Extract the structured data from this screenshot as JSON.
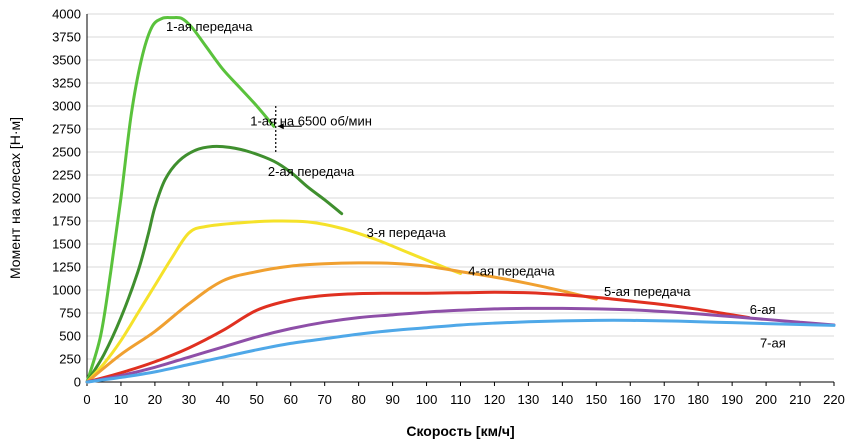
{
  "chart_data": {
    "type": "line",
    "xlabel": "Скорость [км/ч]",
    "ylabel": "Момент на колесах [Н·м]",
    "xlim": [
      0,
      220
    ],
    "ylim": [
      0,
      4000
    ],
    "x_ticks": [
      "0",
      "10",
      "20",
      "30",
      "40",
      "50",
      "60",
      "70",
      "80",
      "90",
      "100",
      "110",
      "120",
      "130",
      "140",
      "150",
      "160",
      "170",
      "180",
      "190",
      "200",
      "210",
      "220"
    ],
    "y_ticks": [
      "0",
      "250",
      "500",
      "750",
      "1000",
      "1250",
      "1500",
      "1750",
      "2000",
      "2250",
      "2500",
      "2750",
      "3000",
      "3250",
      "3500",
      "3750",
      "4000"
    ],
    "grid": "horizontal",
    "series": [
      {
        "name": "1-ая передача",
        "color": "#5ac23c",
        "points": [
          [
            0,
            0
          ],
          [
            4,
            500
          ],
          [
            7,
            1200
          ],
          [
            10,
            2000
          ],
          [
            13,
            2900
          ],
          [
            16,
            3500
          ],
          [
            19,
            3850
          ],
          [
            22,
            3950
          ],
          [
            25,
            3960
          ],
          [
            28,
            3950
          ],
          [
            31,
            3850
          ],
          [
            35,
            3650
          ],
          [
            40,
            3400
          ],
          [
            45,
            3200
          ],
          [
            50,
            3000
          ],
          [
            55,
            2780
          ]
        ]
      },
      {
        "name": "2-ая передача",
        "color": "#3f8f2e",
        "points": [
          [
            0,
            0
          ],
          [
            5,
            300
          ],
          [
            10,
            700
          ],
          [
            15,
            1200
          ],
          [
            18,
            1600
          ],
          [
            20,
            1900
          ],
          [
            23,
            2200
          ],
          [
            27,
            2400
          ],
          [
            32,
            2520
          ],
          [
            37,
            2560
          ],
          [
            42,
            2550
          ],
          [
            48,
            2500
          ],
          [
            55,
            2400
          ],
          [
            60,
            2280
          ],
          [
            65,
            2120
          ],
          [
            70,
            1980
          ],
          [
            75,
            1830
          ]
        ]
      },
      {
        "name": "3-я передача",
        "color": "#f5e22a",
        "points": [
          [
            0,
            0
          ],
          [
            5,
            200
          ],
          [
            10,
            450
          ],
          [
            15,
            750
          ],
          [
            20,
            1050
          ],
          [
            25,
            1350
          ],
          [
            30,
            1620
          ],
          [
            35,
            1690
          ],
          [
            45,
            1730
          ],
          [
            55,
            1750
          ],
          [
            65,
            1740
          ],
          [
            75,
            1670
          ],
          [
            85,
            1550
          ],
          [
            95,
            1400
          ],
          [
            105,
            1250
          ],
          [
            110,
            1180
          ]
        ]
      },
      {
        "name": "4-ая передача",
        "color": "#f0a030",
        "points": [
          [
            0,
            0
          ],
          [
            10,
            300
          ],
          [
            20,
            550
          ],
          [
            30,
            850
          ],
          [
            40,
            1100
          ],
          [
            50,
            1200
          ],
          [
            60,
            1260
          ],
          [
            70,
            1285
          ],
          [
            80,
            1295
          ],
          [
            90,
            1290
          ],
          [
            100,
            1260
          ],
          [
            110,
            1200
          ],
          [
            120,
            1140
          ],
          [
            130,
            1070
          ],
          [
            140,
            990
          ],
          [
            150,
            900
          ]
        ]
      },
      {
        "name": "5-ая передача",
        "color": "#e03020",
        "points": [
          [
            0,
            0
          ],
          [
            10,
            100
          ],
          [
            20,
            220
          ],
          [
            30,
            370
          ],
          [
            40,
            560
          ],
          [
            50,
            780
          ],
          [
            60,
            890
          ],
          [
            70,
            940
          ],
          [
            80,
            960
          ],
          [
            90,
            965
          ],
          [
            100,
            965
          ],
          [
            110,
            970
          ],
          [
            120,
            975
          ],
          [
            130,
            970
          ],
          [
            140,
            950
          ],
          [
            150,
            920
          ],
          [
            160,
            880
          ],
          [
            170,
            840
          ],
          [
            180,
            790
          ],
          [
            190,
            730
          ],
          [
            195,
            700
          ]
        ]
      },
      {
        "name": "6-ая",
        "color": "#8e4fa8",
        "points": [
          [
            0,
            0
          ],
          [
            10,
            70
          ],
          [
            20,
            160
          ],
          [
            30,
            270
          ],
          [
            40,
            380
          ],
          [
            50,
            490
          ],
          [
            60,
            580
          ],
          [
            70,
            650
          ],
          [
            80,
            700
          ],
          [
            90,
            730
          ],
          [
            100,
            760
          ],
          [
            110,
            780
          ],
          [
            120,
            795
          ],
          [
            130,
            800
          ],
          [
            140,
            800
          ],
          [
            150,
            795
          ],
          [
            160,
            785
          ],
          [
            170,
            765
          ],
          [
            180,
            740
          ],
          [
            190,
            710
          ],
          [
            200,
            680
          ],
          [
            210,
            650
          ],
          [
            220,
            620
          ]
        ]
      },
      {
        "name": "7-ая",
        "color": "#4fa8e8",
        "points": [
          [
            0,
            0
          ],
          [
            10,
            50
          ],
          [
            20,
            110
          ],
          [
            30,
            190
          ],
          [
            40,
            270
          ],
          [
            50,
            350
          ],
          [
            60,
            420
          ],
          [
            70,
            470
          ],
          [
            80,
            520
          ],
          [
            90,
            560
          ],
          [
            100,
            590
          ],
          [
            110,
            620
          ],
          [
            120,
            640
          ],
          [
            130,
            655
          ],
          [
            140,
            665
          ],
          [
            150,
            670
          ],
          [
            160,
            670
          ],
          [
            170,
            665
          ],
          [
            180,
            655
          ],
          [
            190,
            645
          ],
          [
            200,
            635
          ],
          [
            210,
            625
          ],
          [
            220,
            615
          ]
        ]
      }
    ],
    "labels": [
      {
        "text": "1-ая передача",
        "x": 36,
        "y": 3860
      },
      {
        "text": "1-ая на 6500 об/мин",
        "x": 66,
        "y": 2830
      },
      {
        "text": "2-ая передача",
        "x": 66,
        "y": 2280
      },
      {
        "text": "3-я передача",
        "x": 94,
        "y": 1620
      },
      {
        "text": "4-ая передача",
        "x": 125,
        "y": 1200
      },
      {
        "text": "5-ая передача",
        "x": 165,
        "y": 980
      },
      {
        "text": "6-ая",
        "x": 199,
        "y": 780
      },
      {
        "text": "7-ая",
        "x": 202,
        "y": 420
      }
    ],
    "annotation": {
      "x": 55,
      "y_from": 3000,
      "y_to": 2500,
      "arrow_y": 2780
    }
  }
}
